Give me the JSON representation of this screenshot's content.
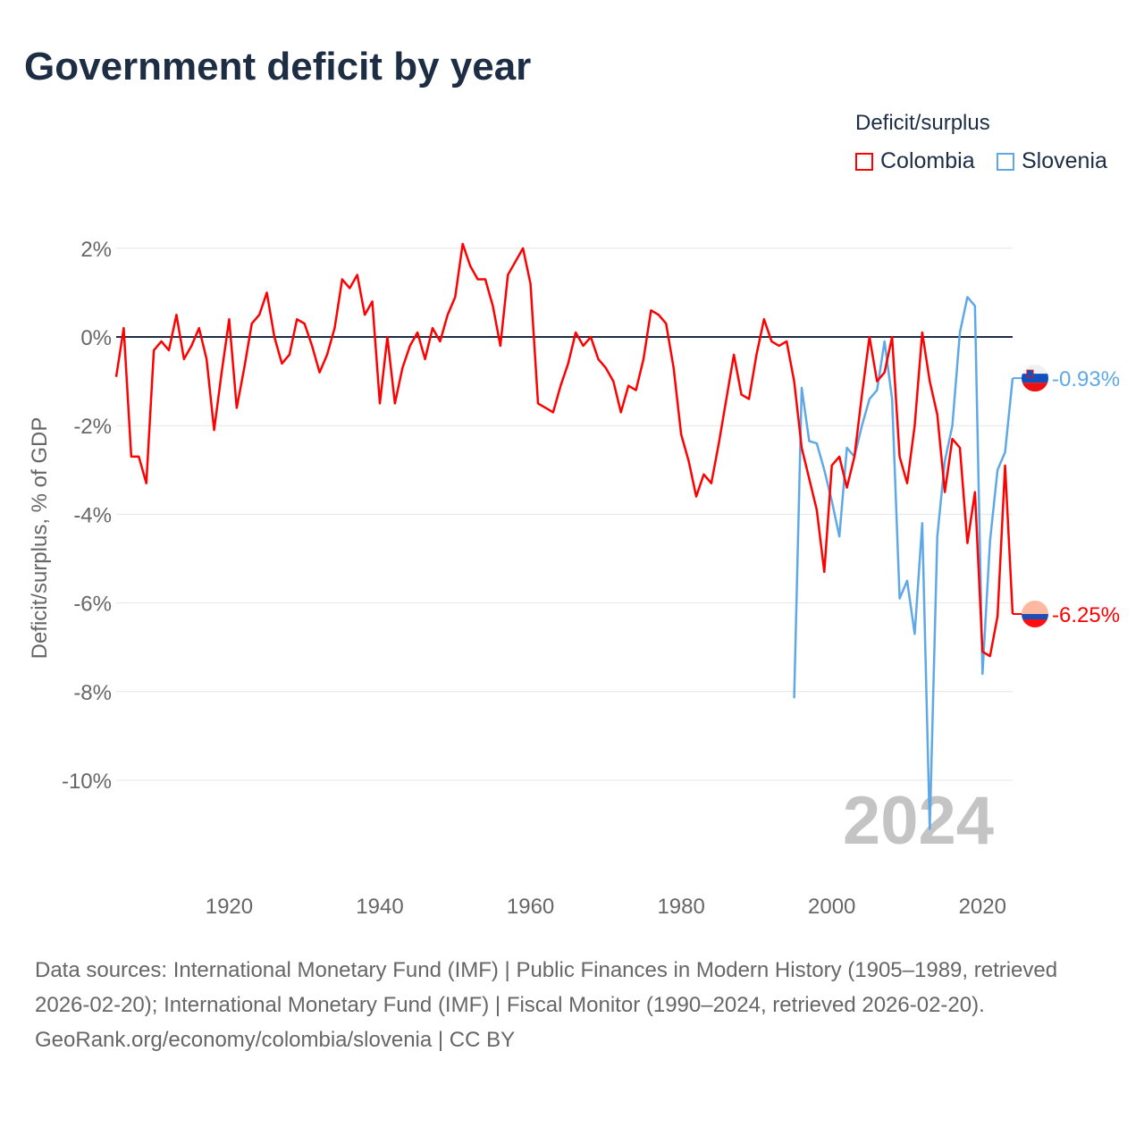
{
  "title": "Government deficit by year",
  "footer": {
    "sources": "Data sources: International Monetary Fund (IMF) | Public Finances in Modern History (1905–1989, retrieved 2026-02-20); International Monetary Fund (IMF) | Fiscal Monitor (1990–2024, retrieved 2026-02-20).",
    "credit": "GeoRank.org/economy/colombia/slovenia | CC BY"
  },
  "chart_data": {
    "type": "line",
    "title": "Government deficit by year",
    "xlabel": "",
    "ylabel": "Deficit/surplus, % of GDP",
    "legend_title": "Deficit/surplus",
    "legend_position": "top-right",
    "xlim": [
      1905,
      2024
    ],
    "ylim": [
      -11.5,
      2.5
    ],
    "x_ticks": [
      1920,
      1940,
      1960,
      1980,
      2000,
      2020
    ],
    "x_tick_labels": [
      "1920",
      "1940",
      "1960",
      "1980",
      "2000",
      "2020"
    ],
    "y_ticks": [
      2,
      0,
      -2,
      -4,
      -6,
      -8,
      -10
    ],
    "y_tick_labels": [
      "2%",
      "0%",
      "-2%",
      "-4%",
      "-6%",
      "-8%",
      "-10%"
    ],
    "current_year_label": "2024",
    "grid": true,
    "series": [
      {
        "name": "Colombia",
        "color": "#ff0000",
        "end_label": "-6.25%",
        "x_start": 1905,
        "values": [
          -0.9,
          0.2,
          -2.7,
          -2.7,
          -3.3,
          -0.3,
          -0.1,
          -0.3,
          0.5,
          -0.5,
          -0.2,
          0.2,
          -0.5,
          -2.1,
          -0.8,
          0.4,
          -1.6,
          -0.7,
          0.3,
          0.5,
          1.0,
          0.0,
          -0.6,
          -0.4,
          0.4,
          0.3,
          -0.2,
          -0.8,
          -0.4,
          0.2,
          1.3,
          1.1,
          1.4,
          0.5,
          0.8,
          -1.5,
          0.0,
          -1.5,
          -0.7,
          -0.2,
          0.1,
          -0.5,
          0.2,
          -0.1,
          0.5,
          0.9,
          2.1,
          1.6,
          1.3,
          1.3,
          0.7,
          -0.2,
          1.4,
          1.7,
          2.0,
          1.2,
          -1.5,
          -1.6,
          -1.7,
          -1.1,
          -0.6,
          0.1,
          -0.2,
          0.0,
          -0.5,
          -0.7,
          -1.0,
          -1.7,
          -1.1,
          -1.2,
          -0.5,
          0.6,
          0.5,
          0.3,
          -0.7,
          -2.2,
          -2.8,
          -3.6,
          -3.1,
          -3.3,
          -2.4,
          -1.4,
          -0.4,
          -1.3,
          -1.4,
          -0.4,
          0.4,
          -0.1,
          -0.2,
          -0.1,
          -1.0,
          -2.5,
          -3.2,
          -3.9,
          -5.3,
          -2.9,
          -2.7,
          -3.4,
          -2.7,
          -1.3,
          0.0,
          -1.0,
          -0.8,
          0.0,
          -2.7,
          -3.3,
          -2.0,
          0.1,
          -1.0,
          -1.75,
          -3.5,
          -2.3,
          -2.5,
          -4.65,
          -3.5,
          -7.1,
          -7.2,
          -6.3,
          -2.9,
          -6.25
        ]
      },
      {
        "name": "Slovenia",
        "color": "#5fa8e8",
        "end_label": "-0.93%",
        "x_start": 1995,
        "values": [
          -8.15,
          -1.15,
          -2.35,
          -2.4,
          -3.0,
          -3.7,
          -4.5,
          -2.5,
          -2.7,
          -2.0,
          -1.4,
          -1.2,
          -0.1,
          -1.4,
          -5.9,
          -5.5,
          -6.7,
          -4.2,
          -11.1,
          -4.5,
          -2.8,
          -2.0,
          0.1,
          0.9,
          0.7,
          -7.6,
          -4.6,
          -3.0,
          -2.6,
          -0.93
        ]
      }
    ]
  }
}
